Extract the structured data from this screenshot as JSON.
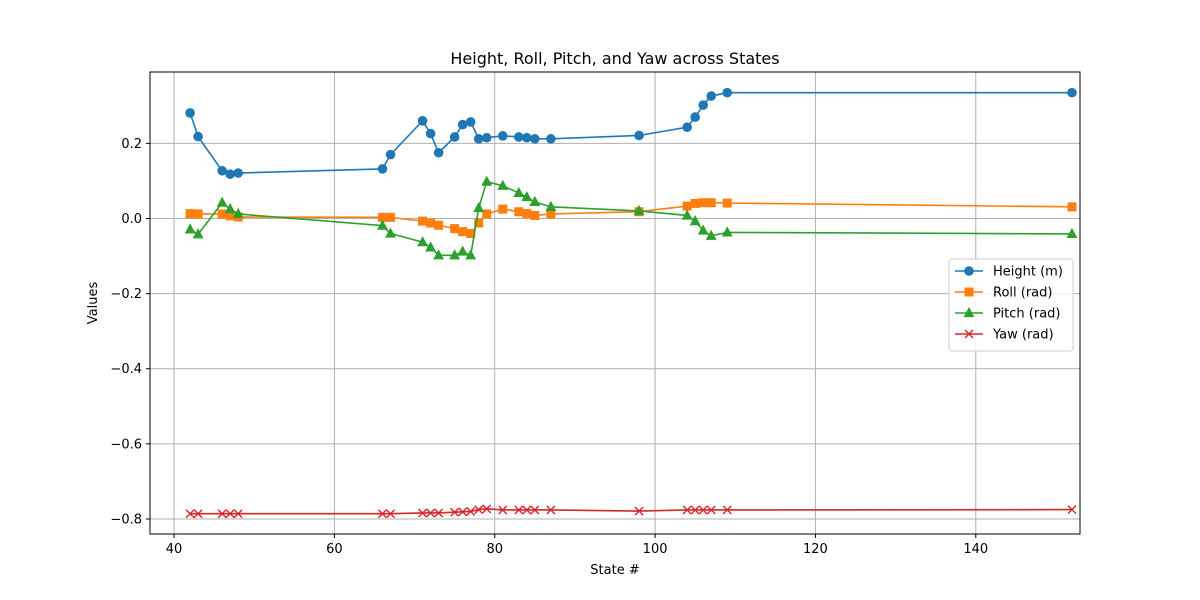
{
  "chart_data": {
    "type": "line",
    "title": "Height, Roll, Pitch, and Yaw across States",
    "xlabel": "State #",
    "ylabel": "Values",
    "xlim": [
      37,
      153
    ],
    "ylim": [
      -0.84,
      0.39
    ],
    "x_ticks": [
      40,
      60,
      80,
      100,
      120,
      140
    ],
    "y_ticks": [
      -0.8,
      -0.6,
      -0.4,
      -0.2,
      0.0,
      0.2
    ],
    "x_tick_labels": [
      "40",
      "60",
      "80",
      "100",
      "120",
      "140"
    ],
    "y_tick_labels": [
      "−0.8",
      "−0.6",
      "−0.4",
      "−0.2",
      "0.0",
      "0.2"
    ],
    "grid": true,
    "legend_position": "center-right",
    "x": [
      42,
      43,
      46,
      47,
      48,
      66,
      67,
      71,
      72,
      73,
      75,
      76,
      77,
      78,
      79,
      81,
      83,
      84,
      85,
      87,
      98,
      104,
      105,
      106,
      107,
      109,
      152
    ],
    "series": [
      {
        "name": "Height (m)",
        "color": "#1f77b4",
        "marker": "circle",
        "values": [
          0.281,
          0.218,
          0.127,
          0.118,
          0.121,
          0.132,
          0.17,
          0.26,
          0.226,
          0.175,
          0.217,
          0.25,
          0.257,
          0.212,
          0.215,
          0.22,
          0.217,
          0.215,
          0.212,
          0.212,
          0.221,
          0.243,
          0.27,
          0.302,
          0.326,
          0.335,
          0.335
        ]
      },
      {
        "name": "Roll (rad)",
        "color": "#ff7f0e",
        "marker": "square",
        "values": [
          0.013,
          0.012,
          0.012,
          0.007,
          0.004,
          0.003,
          0.003,
          -0.007,
          -0.012,
          -0.018,
          -0.027,
          -0.035,
          -0.04,
          -0.012,
          0.012,
          0.025,
          0.018,
          0.013,
          0.008,
          0.012,
          0.018,
          0.033,
          0.04,
          0.042,
          0.042,
          0.041,
          0.031
        ]
      },
      {
        "name": "Pitch (rad)",
        "color": "#2ca02c",
        "marker": "triangle",
        "values": [
          -0.029,
          -0.042,
          0.042,
          0.025,
          0.012,
          -0.019,
          -0.04,
          -0.063,
          -0.077,
          -0.098,
          -0.098,
          -0.088,
          -0.098,
          0.028,
          0.098,
          0.087,
          0.068,
          0.057,
          0.044,
          0.031,
          0.02,
          0.008,
          -0.007,
          -0.032,
          -0.046,
          -0.037,
          -0.041
        ]
      },
      {
        "name": "Yaw (rad)",
        "color": "#d62728",
        "marker": "x",
        "values": [
          -0.786,
          -0.786,
          -0.786,
          -0.786,
          -0.786,
          -0.786,
          -0.786,
          -0.784,
          -0.784,
          -0.784,
          -0.782,
          -0.781,
          -0.78,
          -0.775,
          -0.773,
          -0.776,
          -0.776,
          -0.776,
          -0.776,
          -0.776,
          -0.779,
          -0.776,
          -0.776,
          -0.776,
          -0.776,
          -0.776,
          -0.775
        ]
      }
    ]
  }
}
